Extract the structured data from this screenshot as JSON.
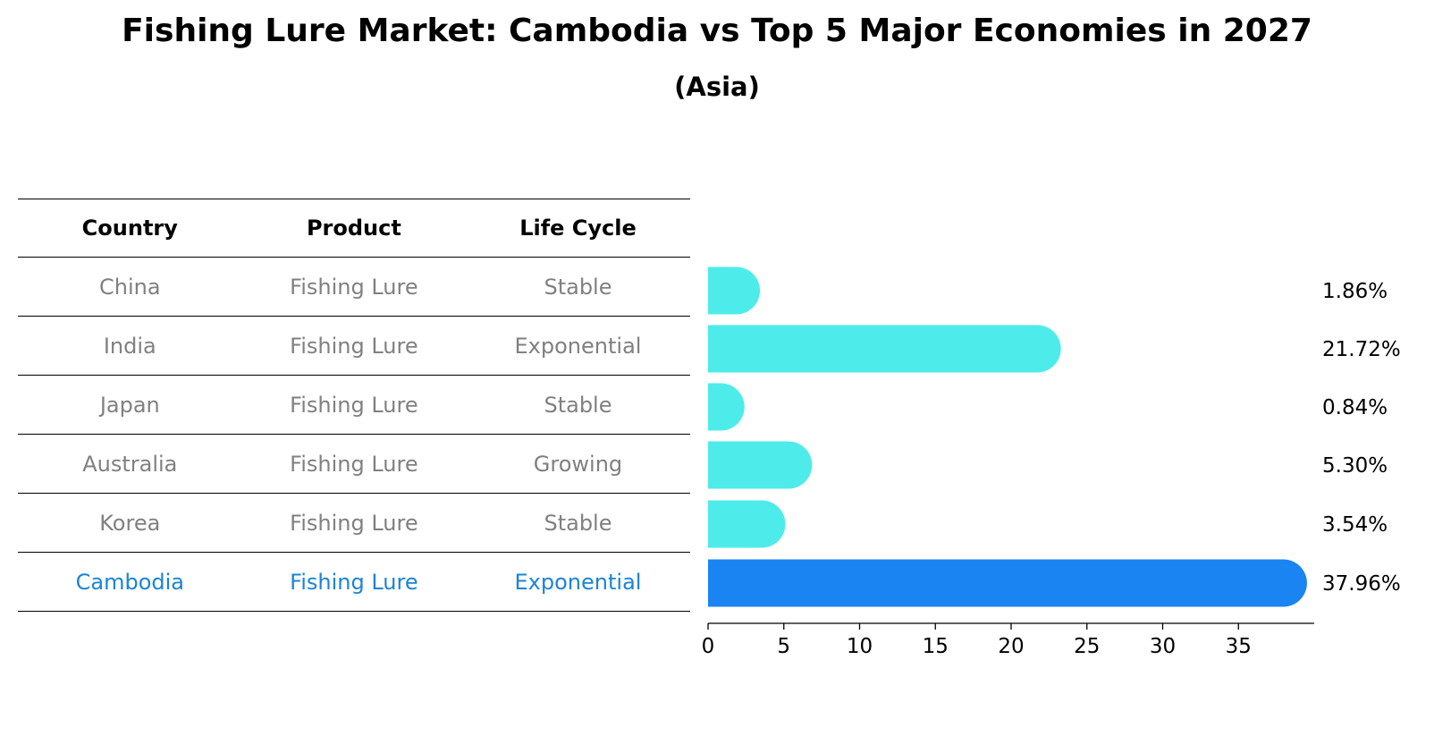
{
  "title": "Fishing Lure Market: Cambodia vs Top 5 Major Economies in 2027",
  "subtitle": "(Asia)",
  "table": {
    "headers": [
      "Country",
      "Product",
      "Life Cycle"
    ],
    "rows": [
      [
        "China",
        "Fishing Lure",
        "Stable"
      ],
      [
        "India",
        "Fishing Lure",
        "Exponential"
      ],
      [
        "Japan",
        "Fishing Lure",
        "Stable"
      ],
      [
        "Australia",
        "Fishing Lure",
        "Growing"
      ],
      [
        "Korea",
        "Fishing Lure",
        "Stable"
      ],
      [
        "Cambodia",
        "Fishing Lure",
        "Exponential"
      ]
    ],
    "highlight_row": 5,
    "highlight_color": "#1a84d6",
    "text_color": "#808080"
  },
  "chart_data": {
    "type": "bar",
    "orientation": "horizontal",
    "categories": [
      "China",
      "India",
      "Japan",
      "Australia",
      "Korea",
      "Cambodia"
    ],
    "values": [
      1.86,
      21.72,
      0.84,
      5.3,
      3.54,
      37.96
    ],
    "value_labels": [
      "1.86%",
      "21.72%",
      "0.84%",
      "5.30%",
      "3.54%",
      "37.96%"
    ],
    "xlim": [
      0,
      40
    ],
    "xticks": [
      0,
      5,
      10,
      15,
      20,
      25,
      30,
      35
    ],
    "bar_color": "#4deceb",
    "highlight_color": "#1a84f2",
    "highlight_index": 5,
    "title": "Fishing Lure Market: Cambodia vs Top 5 Major Economies in 2027",
    "xlabel": "",
    "ylabel": ""
  }
}
